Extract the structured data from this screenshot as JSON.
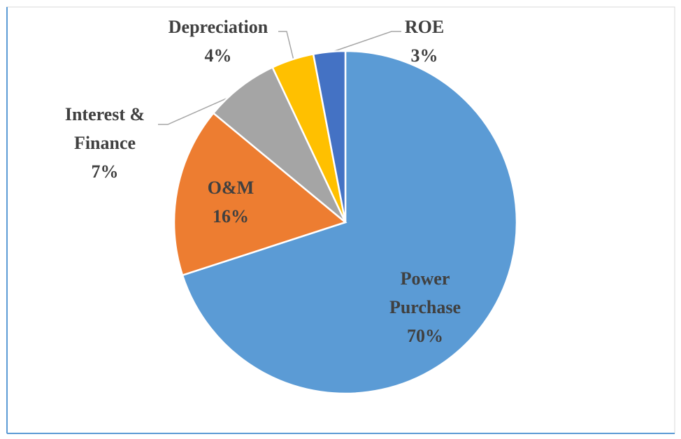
{
  "chart_data": {
    "type": "pie",
    "categories": [
      "Power Purchase",
      "O&M",
      "Interest & Finance",
      "Depreciation",
      "ROE"
    ],
    "values": [
      70,
      16,
      7,
      4,
      3
    ],
    "value_labels": [
      "70%",
      "16%",
      "7%",
      "4%",
      "3%"
    ],
    "colors": [
      "#5b9bd5",
      "#ed7d31",
      "#a5a5a5",
      "#ffc000",
      "#4472c4"
    ]
  }
}
